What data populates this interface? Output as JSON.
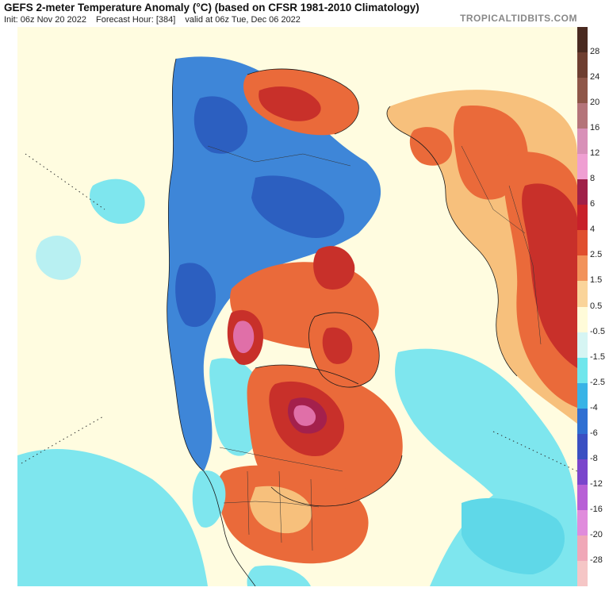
{
  "header": {
    "title": "GEFS 2-meter Temperature Anomaly (°C) (based on CFSR 1981-2010 Climatology)",
    "init": "Init: 06z Nov 20 2022",
    "forecast_hour": "Forecast Hour: [384]",
    "valid": "valid at 06z Tue, Dec 06 2022",
    "site": "TROPICALTIDBITS.COM"
  },
  "legend": {
    "ticks": [
      "28",
      "24",
      "20",
      "16",
      "12",
      "8",
      "6",
      "4",
      "2.5",
      "1.5",
      "0.5",
      "-0.5",
      "-1.5",
      "-2.5",
      "-4",
      "-6",
      "-8",
      "-12",
      "-16",
      "-20",
      "-28"
    ],
    "colors": [
      "#4a2a20",
      "#6e3e30",
      "#8e5648",
      "#b4747a",
      "#d890b8",
      "#ef9fd2",
      "#a02048",
      "#c8202a",
      "#e04e2e",
      "#f2925a",
      "#fad49a",
      "#fffbd9",
      "#d6f5f3",
      "#6fe6ec",
      "#39b3e6",
      "#2f6fd2",
      "#3a4fc2",
      "#7a45cc",
      "#b860d6",
      "#e08cdc",
      "#f0a8b8",
      "#f5c6c6"
    ]
  },
  "map": {
    "colors": {
      "neutral": "#fffce0",
      "cool": "#7ee6ee",
      "cold": "#3e86d8",
      "cold_deep": "#2c5fc0",
      "warm": "#f7c07c",
      "hot": "#ea6a3a",
      "very_hot": "#c8302a",
      "extreme": "#a4204c",
      "pink": "#e06fa8"
    }
  }
}
